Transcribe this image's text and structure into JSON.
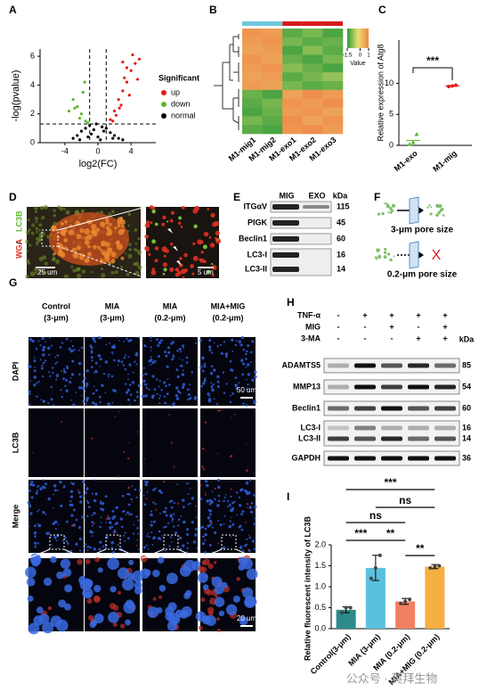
{
  "panel_labels": [
    "A",
    "B",
    "C",
    "D",
    "E",
    "F",
    "G",
    "H",
    "I"
  ],
  "chart_data": [
    {
      "type": "scatter",
      "x_label": "log2(FC)",
      "y_label": "-log(pvalue)",
      "xlim": [
        -7,
        7
      ],
      "ylim": [
        0,
        6.5
      ],
      "xticks": [
        -4,
        0,
        4
      ],
      "yticks": [
        0,
        2,
        4,
        6
      ],
      "thresholds": {
        "x": [
          -1,
          1
        ],
        "y": 1.3
      },
      "legend_title": "Significant",
      "series": [
        {
          "name": "up",
          "color": "#e41a1c",
          "x": [
            1.5,
            2,
            2.5,
            3,
            3.5,
            4,
            4.5,
            5,
            2.2,
            2.8,
            3.2,
            3.8,
            4.2,
            1.8,
            3.5,
            4.8,
            2.6,
            3.0
          ],
          "values": [
            1.6,
            2.2,
            3,
            3.6,
            4.2,
            5,
            5.5,
            5.8,
            1.9,
            2.6,
            4.5,
            3.3,
            6.1,
            1.5,
            5.2,
            4.4,
            2.4,
            5.6
          ]
        },
        {
          "name": "down",
          "color": "#5cb82e",
          "x": [
            -1.5,
            -2,
            -2.5,
            -3,
            -3.5,
            -1.8,
            -2.2,
            -2.8,
            -1.2,
            -1.6
          ],
          "values": [
            1.5,
            2,
            2.5,
            3,
            2.2,
            3.5,
            1.7,
            2.4,
            1.4,
            4.2
          ]
        },
        {
          "name": "normal",
          "color": "#000000",
          "x": [
            -3,
            -2.5,
            -2,
            -1.5,
            -1,
            -0.5,
            0,
            0.5,
            1,
            1.5,
            2,
            2.5,
            3,
            -0.8,
            0.3,
            -0.2,
            0.7,
            -1.2,
            1.8,
            -2.2
          ],
          "values": [
            0.3,
            0.5,
            0.8,
            1.0,
            1.2,
            0.9,
            0.4,
            1.1,
            1.0,
            0.7,
            0.5,
            0.3,
            0.2,
            0.6,
            0.2,
            1.3,
            0.8,
            0.4,
            0.3,
            0.2
          ]
        }
      ]
    },
    {
      "type": "heatmap",
      "columns": [
        "M1-mig1",
        "M1-mig2",
        "M1-exo1",
        "M1-exo2",
        "M1-exo3"
      ],
      "column_group_colors": [
        "#6fc8dc",
        "#6fc8dc",
        "#d7191c",
        "#d7191c",
        "#d7191c"
      ],
      "values": [
        [
          0.8,
          0.7,
          -1.2,
          -1.0,
          -1.3
        ],
        [
          0.7,
          0.8,
          -1.0,
          -1.2,
          -1.1
        ],
        [
          0.6,
          0.7,
          -1.3,
          -0.9,
          -1.2
        ],
        [
          0.8,
          0.6,
          -1.1,
          -1.3,
          -1.0
        ],
        [
          0.7,
          0.8,
          -0.9,
          -1.1,
          -1.3
        ],
        [
          0.6,
          0.7,
          -1.2,
          -1.0,
          -0.8
        ],
        [
          0.7,
          0.6,
          -1.0,
          -1.2,
          -1.1
        ],
        [
          -1.1,
          -1.3,
          0.6,
          0.9,
          0.7
        ],
        [
          -1.2,
          -1.0,
          0.8,
          0.7,
          0.9
        ],
        [
          -1.3,
          -1.1,
          0.7,
          0.8,
          0.6
        ],
        [
          -1.0,
          -1.2,
          0.9,
          0.6,
          0.8
        ],
        [
          -1.2,
          -1.3,
          0.8,
          0.9,
          0.7
        ]
      ],
      "colormap": [
        "#2e9a3a",
        "#e8e070",
        "#f0874a"
      ],
      "clim": [
        -1.5,
        1
      ],
      "colorbar_ticks": [
        -1.5,
        0,
        1
      ],
      "colorbar_label": "Value"
    },
    {
      "type": "dot",
      "y_label": "Relative expression of Atg8",
      "categories": [
        "M1-exo",
        "M1-mig"
      ],
      "values": [
        0.8,
        9.6
      ],
      "points": [
        [
          0.2,
          0.5,
          1.8
        ],
        [
          9.5,
          9.6,
          9.7
        ]
      ],
      "colors": [
        "#5cb82e",
        "#e41a1c"
      ],
      "ylim": [
        0,
        17
      ],
      "yticks": [
        0,
        5,
        10
      ],
      "annotation": "***"
    },
    {
      "type": "bar",
      "y_label": "Relative fluorescent intensity of LC3B",
      "categories": [
        "Control(3-μm)",
        "MIA (3-μm)",
        "MIA (0.2-μm)",
        "MIA+MIG (0.2-μm)"
      ],
      "values": [
        0.45,
        1.45,
        0.65,
        1.48
      ],
      "errors": [
        0.07,
        0.3,
        0.07,
        0.05
      ],
      "points": [
        [
          0.38,
          0.5,
          0.5
        ],
        [
          1.2,
          1.45,
          1.75
        ],
        [
          0.6,
          0.65,
          0.7
        ],
        [
          1.45,
          1.48,
          1.5
        ]
      ],
      "colors": [
        "#2e8b8b",
        "#5bc0de",
        "#f08060",
        "#f5b041"
      ],
      "ylim": [
        0,
        2
      ],
      "yticks": [
        {
          "value": 0,
          "label": "0.0"
        },
        {
          "value": 0.5,
          "label": "0.5"
        },
        {
          "value": 1,
          "label": "1.0"
        },
        {
          "value": 1.5,
          "label": "1.5"
        },
        {
          "value": 2,
          "label": "2.0"
        }
      ],
      "comparisons": [
        {
          "pair": [
            0,
            3
          ],
          "label": "***"
        },
        {
          "pair": [
            1,
            3
          ],
          "label": "ns"
        },
        {
          "pair": [
            0,
            2
          ],
          "label": "ns"
        },
        {
          "pair": [
            0,
            1
          ],
          "label": "***"
        },
        {
          "pair": [
            1,
            2
          ],
          "label": "**"
        },
        {
          "pair": [
            2,
            3
          ],
          "label": "**"
        }
      ]
    }
  ],
  "panel_d": {
    "stain_1": "WGA",
    "separator": "/",
    "stain_2": "LC3B",
    "scale_bar_main": "25 um",
    "scale_bar_inset": "5 um"
  },
  "panel_e": {
    "lanes": [
      "MIG",
      "EXO"
    ],
    "unit": "kDa",
    "rows": [
      {
        "label": "ITGαV",
        "kda": 115
      },
      {
        "label": "PIGK",
        "kda": 45
      },
      {
        "label": "Beclin1",
        "kda": 60
      },
      {
        "label": "LC3-I",
        "kda": 16
      },
      {
        "label": "LC3-II",
        "kda": 14
      }
    ]
  },
  "panel_f": {
    "large_pore": "3-μm pore size",
    "small_pore": "0.2-μm pore size",
    "blocked": "X"
  },
  "panel_g": {
    "columns": [
      [
        "Control",
        "(3-μm)"
      ],
      [
        "MIA",
        "(3-μm)"
      ],
      [
        "MIA",
        "(0.2-μm)"
      ],
      [
        "MIA+MIG",
        "(0.2-μm)"
      ]
    ],
    "rows": [
      "DAPI",
      "LC3B",
      "Merge"
    ],
    "scale_bar_main": "50 um",
    "scale_bar_zoom": "20 um"
  },
  "panel_h": {
    "treatments": [
      {
        "label": "TNF-α",
        "signs": [
          "-",
          "+",
          "+",
          "+",
          "+"
        ]
      },
      {
        "label": "MIG",
        "signs": [
          "-",
          "-",
          "+",
          "-",
          "+"
        ]
      },
      {
        "label": "3-MA",
        "signs": [
          "-",
          "-",
          "-",
          "+",
          "+"
        ]
      }
    ],
    "unit": "kDa",
    "blots": [
      {
        "label": "ADAMTS5",
        "kda": 85
      },
      {
        "label": "MMP13",
        "kda": 54
      },
      {
        "label": "Beclin1",
        "kda": 60
      },
      {
        "label": "LC3-I",
        "kda": 16
      },
      {
        "label": "LC3-II",
        "kda": 14
      },
      {
        "label": "GAPDH",
        "kda": 36
      }
    ]
  },
  "watermark": "公众号 · 英拜生物"
}
